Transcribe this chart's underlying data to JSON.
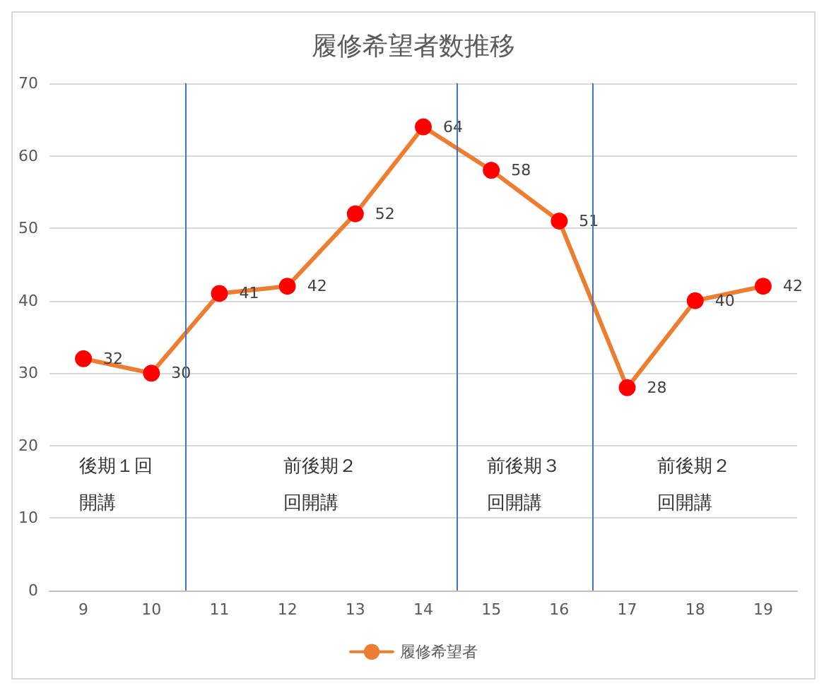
{
  "chart_data": {
    "type": "line",
    "title": "履修希望者数推移",
    "x": [
      9,
      10,
      11,
      12,
      13,
      14,
      15,
      16,
      17,
      18,
      19
    ],
    "xlim": [
      8.5,
      19.5
    ],
    "xticks": [
      9,
      10,
      11,
      12,
      13,
      14,
      15,
      16,
      17,
      18,
      19
    ],
    "ylim": [
      0,
      70
    ],
    "yticks": [
      0,
      10,
      20,
      30,
      40,
      50,
      60,
      70
    ],
    "series": [
      {
        "name": "履修希望者",
        "color": "#ed7d31",
        "colors": [
          "#ff0000",
          "#ff0000",
          "#ff0000",
          "#ff0000",
          "#ff0000",
          "#ff0000",
          "#ff0000",
          "#ff0000",
          "#ff0000",
          "#ff0000",
          "#ff0000"
        ],
        "values": [
          32,
          30,
          41,
          42,
          52,
          64,
          58,
          51,
          28,
          40,
          42
        ]
      }
    ],
    "ref_lines": [
      {
        "axis": "x",
        "value": 10.5,
        "color": "#4472c4"
      },
      {
        "axis": "x",
        "value": 14.5,
        "color": "#4472c4"
      },
      {
        "axis": "x",
        "value": 16.5,
        "color": "#4472c4"
      }
    ],
    "annotations": [
      "後期１回開講",
      "前後期２回開講",
      "前後期３回開講",
      "前後期２回開講"
    ],
    "data_labels": true,
    "grid": "y",
    "legend": "bottom",
    "marker": "circle",
    "line_style": "solid"
  }
}
